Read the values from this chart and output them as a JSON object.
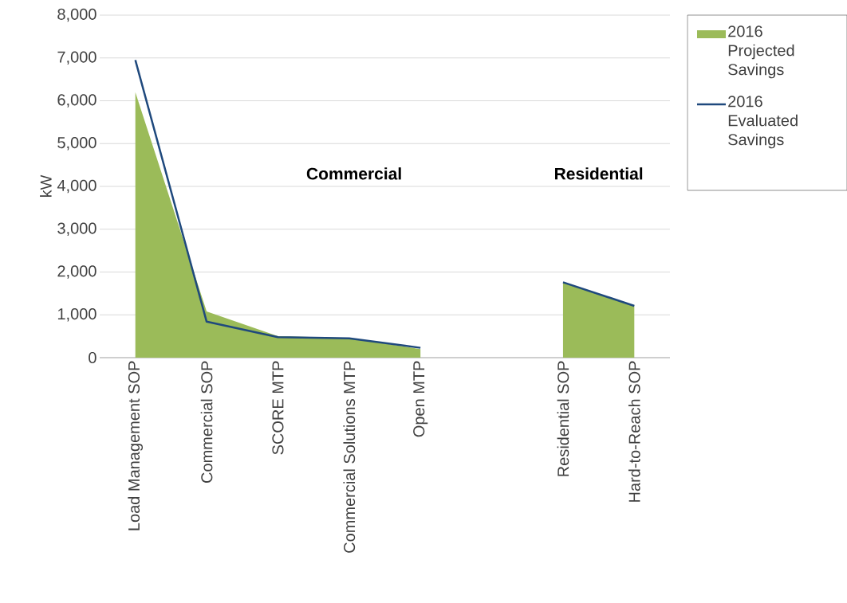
{
  "chart_data": {
    "type": "area",
    "ylabel": "kW",
    "categories": [
      "Load Management SOP",
      "Commercial SOP",
      "SCORE MTP",
      "Commercial Solutions MTP",
      "Open MTP",
      null,
      "Residential SOP",
      "Hard-to-Reach SOP"
    ],
    "series": [
      {
        "name": "2016 Projected Savings",
        "color": "#9bbb59",
        "values": [
          6200,
          1080,
          500,
          460,
          200,
          null,
          1750,
          1220
        ]
      },
      {
        "name": "2016 Evaluated Savings",
        "type": "line",
        "color": "#1f497d",
        "values": [
          6950,
          840,
          480,
          450,
          230,
          null,
          1760,
          1210
        ]
      }
    ],
    "ylim": [
      0,
      8000
    ],
    "yticks": [
      {
        "value": 0,
        "label": "0"
      },
      {
        "value": 1000,
        "label": "1,000"
      },
      {
        "value": 2000,
        "label": "2,000"
      },
      {
        "value": 3000,
        "label": "3,000"
      },
      {
        "value": 4000,
        "label": "4,000"
      },
      {
        "value": 5000,
        "label": "5,000"
      },
      {
        "value": 6000,
        "label": "6,000"
      },
      {
        "value": 7000,
        "label": "7,000"
      },
      {
        "value": 8000,
        "label": "8,000"
      }
    ],
    "grid": "y",
    "legend": "top right",
    "annotations": [
      "Commercial",
      "Residential"
    ]
  }
}
